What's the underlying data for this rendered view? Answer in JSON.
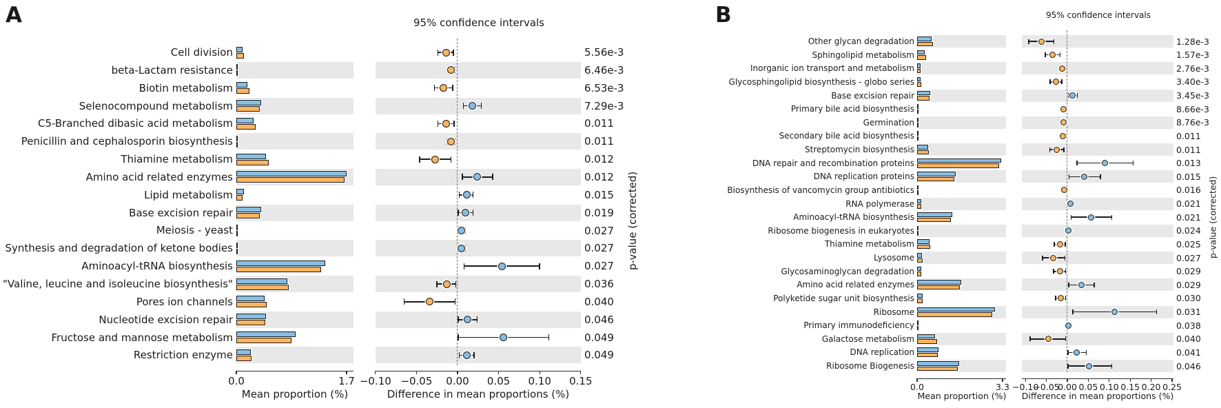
{
  "chart_data": [
    {
      "panel": "A",
      "type": "bar",
      "title": "95% confidence intervals",
      "bar_xlabel": "Mean proportion (%)",
      "bar_ticks": [
        "0.0",
        "1.7"
      ],
      "bar_xlim": [
        0,
        1.7
      ],
      "diff_xlabel": "Difference in mean proportions (%)",
      "diff_ticks": [
        "−0.10",
        "−0.05",
        "0.00",
        "0.05",
        "0.10",
        "0.15"
      ],
      "diff_xlim": [
        -0.1,
        0.15
      ],
      "p_axis_label": "p-value (corrected)",
      "colors": {
        "blue": "#89BEE3",
        "orange": "#FBB460"
      },
      "categories": [
        "Cell division",
        "beta-Lactam resistance",
        "Biotin metabolism",
        "Selenocompound metabolism",
        "C5-Branched dibasic acid metabolism",
        "Penicillin and cephalosporin biosynthesis",
        "Thiamine metabolism",
        "Amino acid related enzymes",
        "Lipid metabolism",
        "Base excision repair",
        "Meiosis - yeast",
        "Synthesis and degradation of ketone bodies",
        "Aminoacyl-tRNA biosynthesis",
        "\"Valine, leucine and isoleucine biosynthesis\"",
        "Pores ion channels",
        "Nucleotide excision repair",
        "Fructose and mannose metabolism",
        "Restriction enzyme"
      ],
      "series": [
        {
          "name": "group1-blue",
          "color": "#89BEE3",
          "values": [
            0.1,
            0.01,
            0.17,
            0.38,
            0.27,
            0.01,
            0.46,
            1.7,
            0.12,
            0.38,
            0.01,
            0.01,
            1.37,
            0.79,
            0.44,
            0.46,
            0.91,
            0.22
          ]
        },
        {
          "name": "group2-orange",
          "color": "#FBB460",
          "values": [
            0.12,
            0.02,
            0.2,
            0.36,
            0.3,
            0.02,
            0.5,
            1.67,
            0.1,
            0.36,
            0.005,
            0.005,
            1.31,
            0.81,
            0.47,
            0.45,
            0.85,
            0.23
          ]
        }
      ],
      "diff": {
        "values": [
          -0.014,
          -0.008,
          -0.017,
          0.018,
          -0.014,
          -0.008,
          -0.027,
          0.024,
          0.011,
          0.01,
          0.005,
          0.005,
          0.054,
          -0.013,
          -0.034,
          0.012,
          0.056,
          0.011
        ],
        "ci_low": [
          -0.024,
          -0.012,
          -0.028,
          0.007,
          -0.024,
          -0.013,
          -0.046,
          0.006,
          0.002,
          0.001,
          0.002,
          0.002,
          0.008,
          -0.025,
          -0.065,
          0.001,
          0.001,
          0.002
        ],
        "ci_high": [
          -0.005,
          -0.003,
          -0.006,
          0.029,
          -0.004,
          -0.003,
          -0.008,
          0.043,
          0.019,
          0.019,
          0.009,
          0.009,
          0.1,
          -0.002,
          -0.003,
          0.024,
          0.111,
          0.02
        ],
        "dot": [
          "orange",
          "orange",
          "orange",
          "blue",
          "orange",
          "orange",
          "orange",
          "blue",
          "blue",
          "blue",
          "blue",
          "blue",
          "blue",
          "orange",
          "orange",
          "blue",
          "blue",
          "blue"
        ]
      },
      "p_values": [
        "5.56e-3",
        "6.46e-3",
        "6.53e-3",
        "7.29e-3",
        "0.011",
        "0.011",
        "0.012",
        "0.012",
        "0.015",
        "0.019",
        "0.027",
        "0.027",
        "0.027",
        "0.036",
        "0.040",
        "0.046",
        "0.049",
        "0.049"
      ]
    },
    {
      "panel": "B",
      "type": "bar",
      "title": "95% confidence intervals",
      "bar_xlabel": "Mean proportion (%)",
      "bar_ticks": [
        "0.0",
        "3.3"
      ],
      "bar_xlim": [
        0,
        3.3
      ],
      "diff_xlabel": "Difference in mean proportions (%)",
      "diff_ticks": [
        "−0.10",
        "−0.05",
        "0.00",
        "0.05",
        "0.10",
        "0.15",
        "0.20",
        "0.25"
      ],
      "diff_xlim": [
        -0.1,
        0.25
      ],
      "p_axis_label": "p-value (corrected)",
      "colors": {
        "blue": "#89BEE3",
        "orange": "#FBB460"
      },
      "categories": [
        "Other glycan degradation",
        "Sphingolipid metabolism",
        "Inorganic ion transport and metabolism",
        "Glycosphingolipid biosynthesis - globo series",
        "Base excision repair",
        "Primary bile acid biosynthesis",
        "Germination",
        "Secondary bile acid biosynthesis",
        "Streptomycin biosynthesis",
        "DNA repair and recombination proteins",
        "DNA replication proteins",
        "Biosynthesis of vancomycin group antibiotics",
        "RNA polymerase",
        "Aminoacyl-tRNA biosynthesis",
        "Ribosome biogenesis in eukaryotes",
        "Thiamine metabolism",
        "Lysosome",
        "Glycosaminoglycan degradation",
        "Amino acid related enzymes",
        "Polyketide sugar unit biosynthesis",
        "Ribosome",
        "Primary immunodeficiency",
        "Galactose metabolism",
        "DNA replication",
        "Ribosome Biogenesis"
      ],
      "series": [
        {
          "name": "group1-blue",
          "color": "#89BEE3",
          "values": [
            0.55,
            0.3,
            0.12,
            0.14,
            0.5,
            0.02,
            0.02,
            0.02,
            0.43,
            3.25,
            1.5,
            0.05,
            0.16,
            1.36,
            0.05,
            0.48,
            0.18,
            0.15,
            1.7,
            0.2,
            3.0,
            0.03,
            0.69,
            0.82,
            1.62
          ]
        },
        {
          "name": "group2-orange",
          "color": "#FBB460",
          "values": [
            0.61,
            0.34,
            0.13,
            0.17,
            0.48,
            0.03,
            0.03,
            0.03,
            0.45,
            3.16,
            1.45,
            0.06,
            0.15,
            1.3,
            0.05,
            0.5,
            0.21,
            0.17,
            1.66,
            0.22,
            2.89,
            0.03,
            0.76,
            0.8,
            1.57
          ]
        }
      ],
      "diff": {
        "values": [
          -0.062,
          -0.035,
          -0.013,
          -0.027,
          0.013,
          -0.009,
          -0.009,
          -0.01,
          -0.025,
          0.089,
          0.041,
          -0.008,
          0.007,
          0.057,
          0.003,
          -0.018,
          -0.033,
          -0.018,
          0.033,
          -0.016,
          0.113,
          0.003,
          -0.046,
          0.023,
          0.052
        ],
        "ci_low": [
          -0.092,
          -0.053,
          -0.019,
          -0.041,
          0.003,
          -0.014,
          -0.014,
          -0.015,
          -0.042,
          0.023,
          0.004,
          -0.013,
          0.001,
          0.009,
          -0.003,
          -0.031,
          -0.059,
          -0.033,
          0.003,
          -0.028,
          0.013,
          -0.002,
          -0.089,
          0.002,
          0.002
        ],
        "ci_high": [
          -0.032,
          -0.017,
          -0.007,
          -0.013,
          0.024,
          -0.004,
          -0.004,
          -0.004,
          -0.008,
          0.157,
          0.079,
          -0.004,
          0.013,
          0.106,
          0.009,
          -0.005,
          -0.006,
          -0.004,
          0.064,
          -0.004,
          0.213,
          0.008,
          -0.004,
          0.045,
          0.106
        ],
        "dot": [
          "orange",
          "orange",
          "orange",
          "orange",
          "blue",
          "orange",
          "orange",
          "orange",
          "orange",
          "blue",
          "blue",
          "orange",
          "blue",
          "blue",
          "blue",
          "orange",
          "orange",
          "orange",
          "blue",
          "orange",
          "blue",
          "blue",
          "orange",
          "blue",
          "blue"
        ]
      },
      "p_values": [
        "1.28e-3",
        "1.57e-3",
        "2.76e-3",
        "3.40e-3",
        "3.45e-3",
        "8.66e-3",
        "8.76e-3",
        "0.011",
        "0.011",
        "0.013",
        "0.015",
        "0.016",
        "0.021",
        "0.021",
        "0.024",
        "0.025",
        "0.027",
        "0.029",
        "0.029",
        "0.030",
        "0.031",
        "0.038",
        "0.040",
        "0.041",
        "0.046"
      ]
    }
  ]
}
